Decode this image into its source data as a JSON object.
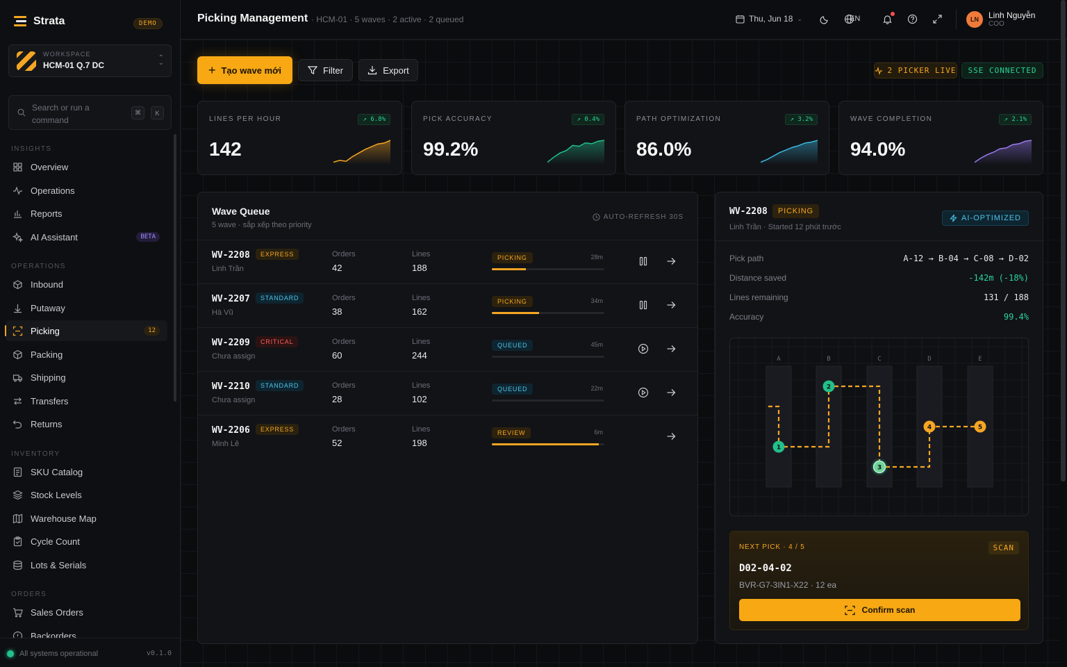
{
  "brand": {
    "name": "Strata",
    "badge": "DEMO"
  },
  "workspace": {
    "label": "WORKSPACE",
    "name": "HCM-01 Q.7 DC"
  },
  "search": {
    "placeholder": "Search or run a command",
    "key1": "⌘",
    "key2": "K"
  },
  "sidebar": {
    "sections": [
      {
        "title": "INSIGHTS",
        "items": [
          {
            "label": "Overview",
            "icon": "grid-icon"
          },
          {
            "label": "Operations",
            "icon": "pulse-icon"
          },
          {
            "label": "Reports",
            "icon": "bar-chart-icon"
          },
          {
            "label": "AI Assistant",
            "icon": "sparkles-icon",
            "badge": "BETA"
          }
        ]
      },
      {
        "title": "OPERATIONS",
        "items": [
          {
            "label": "Inbound",
            "icon": "box-in-icon"
          },
          {
            "label": "Putaway",
            "icon": "arrow-down-icon"
          },
          {
            "label": "Picking",
            "icon": "scan-icon",
            "badge": "12",
            "active": true
          },
          {
            "label": "Packing",
            "icon": "package-icon"
          },
          {
            "label": "Shipping",
            "icon": "truck-icon"
          },
          {
            "label": "Transfers",
            "icon": "transfer-icon"
          },
          {
            "label": "Returns",
            "icon": "undo-icon"
          }
        ]
      },
      {
        "title": "INVENTORY",
        "items": [
          {
            "label": "SKU Catalog",
            "icon": "catalog-icon"
          },
          {
            "label": "Stock Levels",
            "icon": "layers-icon"
          },
          {
            "label": "Warehouse Map",
            "icon": "map-icon"
          },
          {
            "label": "Cycle Count",
            "icon": "clipboard-icon"
          },
          {
            "label": "Lots & Serials",
            "icon": "stack-icon"
          }
        ]
      },
      {
        "title": "ORDERS",
        "items": [
          {
            "label": "Sales Orders",
            "icon": "cart-icon"
          },
          {
            "label": "Backorders",
            "icon": "alert-circle-icon"
          }
        ]
      }
    ]
  },
  "footer": {
    "status": "All systems operational",
    "version": "v0.1.0"
  },
  "header": {
    "title": "Picking Management",
    "subtitle": "· HCM-01 · 5 waves · 2 active · 2 queued",
    "date": "Thu, Jun 18",
    "lang": "EN",
    "user_initials": "LN",
    "user_name": "Linh Nguyễn",
    "user_role": "COO"
  },
  "toolbar": {
    "create": "Tạo wave mới",
    "filter": "Filter",
    "export": "Export",
    "picker_live": "2 PICKER LIVE",
    "sse": "SSE CONNECTED"
  },
  "kpis": [
    {
      "label": "LINES PER HOUR",
      "value": "142",
      "delta": "↗ 6.8%",
      "color": "#f5a623",
      "trend": [
        10,
        12,
        11,
        16,
        20,
        24,
        27,
        30,
        31,
        34
      ]
    },
    {
      "label": "PICK ACCURACY",
      "value": "99.2%",
      "delta": "↗ 0.4%",
      "color": "#22c08a",
      "trend": [
        8,
        14,
        19,
        22,
        28,
        27,
        31,
        30,
        33,
        34
      ]
    },
    {
      "label": "PATH OPTIMIZATION",
      "value": "86.0%",
      "delta": "↗ 3.2%",
      "color": "#3bb8e0",
      "trend": [
        9,
        12,
        16,
        20,
        23,
        26,
        28,
        31,
        32,
        34
      ]
    },
    {
      "label": "WAVE COMPLETION",
      "value": "94.0%",
      "delta": "↗ 2.1%",
      "color": "#9a7cf0",
      "trend": [
        8,
        13,
        17,
        20,
        24,
        25,
        29,
        30,
        33,
        34
      ]
    }
  ],
  "queue": {
    "title": "Wave Queue",
    "subtitle": "5 wave · sắp xếp theo priority",
    "refresh": "AUTO-REFRESH 30S",
    "orders_label": "Orders",
    "lines_label": "Lines",
    "rows": [
      {
        "id": "WV-2208",
        "tag": "EXPRESS",
        "tag_class": "tag-express",
        "picker": "Linh Trần",
        "orders": "42",
        "lines": "188",
        "status": "PICKING",
        "st_class": "st-picking",
        "time": "28m",
        "progress": 0.3,
        "action": "pause-icon"
      },
      {
        "id": "WV-2207",
        "tag": "STANDARD",
        "tag_class": "tag-standard",
        "picker": "Hà Vũ",
        "orders": "38",
        "lines": "162",
        "status": "PICKING",
        "st_class": "st-picking",
        "time": "34m",
        "progress": 0.42,
        "action": "pause-icon"
      },
      {
        "id": "WV-2209",
        "tag": "CRITICAL",
        "tag_class": "tag-critical",
        "picker": "Chưa assign",
        "orders": "60",
        "lines": "244",
        "status": "QUEUED",
        "st_class": "st-queued",
        "time": "45m",
        "progress": 0,
        "action": "play-icon"
      },
      {
        "id": "WV-2210",
        "tag": "STANDARD",
        "tag_class": "tag-standard",
        "picker": "Chưa assign",
        "orders": "28",
        "lines": "102",
        "status": "QUEUED",
        "st_class": "st-queued",
        "time": "22m",
        "progress": 0,
        "action": "play-icon"
      },
      {
        "id": "WV-2206",
        "tag": "EXPRESS",
        "tag_class": "tag-express",
        "picker": "Minh Lê",
        "orders": "52",
        "lines": "198",
        "status": "REVIEW",
        "st_class": "st-review",
        "time": "6m",
        "progress": 0.95,
        "action": ""
      }
    ]
  },
  "detail": {
    "id": "WV-2208",
    "status": "PICKING",
    "subtitle": "Linh Trần · Started 12 phút trước",
    "ai": "AI-OPTIMIZED",
    "kv": [
      {
        "k": "Pick path",
        "v": "A-12 → B-04 → C-08 → D-02",
        "green": false
      },
      {
        "k": "Distance saved",
        "v": "-142m (-18%)",
        "green": true
      },
      {
        "k": "Lines remaining",
        "v": "131 / 188",
        "green": false
      },
      {
        "k": "Accuracy",
        "v": "99.4%",
        "green": true
      }
    ],
    "map": {
      "aisles": [
        "A",
        "B",
        "C",
        "D",
        "E"
      ],
      "stops": [
        "1",
        "2",
        "3",
        "4",
        "5"
      ],
      "current_stop": "3"
    },
    "next": {
      "label": "NEXT PICK · 4 / 5",
      "scan": "SCAN",
      "location": "D02-04-02",
      "sku": "BVR-G7-3IN1-X22 · 12 ea",
      "confirm": "Confirm scan"
    }
  }
}
